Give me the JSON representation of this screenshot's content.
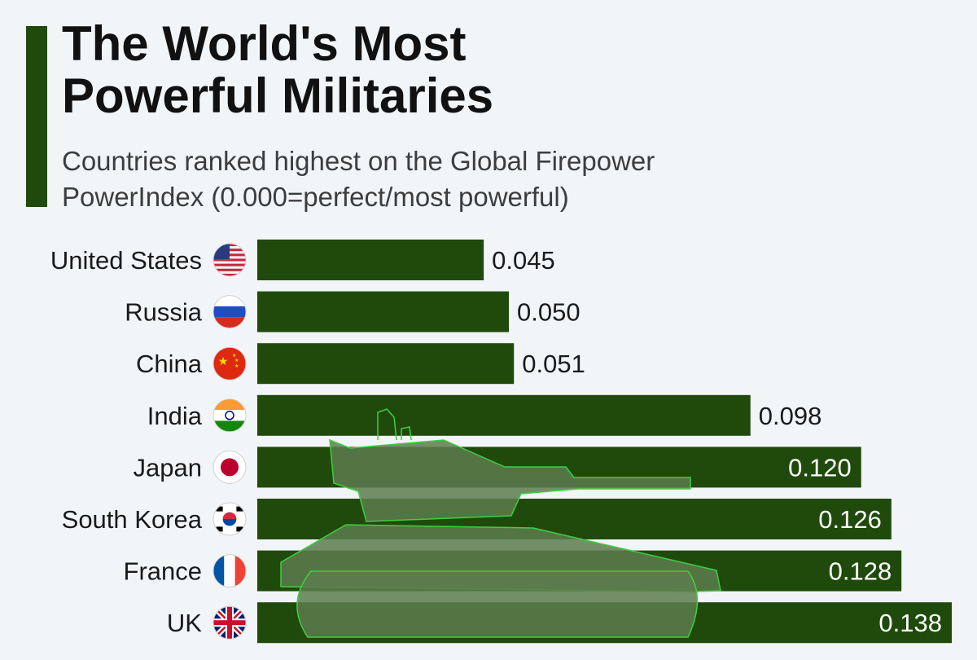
{
  "header": {
    "title_line1": "The World's Most",
    "title_line2": "Powerful Militaries",
    "subtitle_line1": "Countries ranked highest on the Global Firepower",
    "subtitle_line2": "PowerIndex (0.000=perfect/most powerful)"
  },
  "colors": {
    "bar": "#1f4a0c",
    "accent": "#1f4a0c",
    "background": "#f2f5f8",
    "tank_fill": "#5d7d4e",
    "tank_stroke": "#3fcf3f"
  },
  "chart_data": {
    "type": "bar",
    "orientation": "horizontal",
    "title": "The World's Most Powerful Militaries",
    "subtitle": "Countries ranked highest on the Global Firepower PowerIndex (0.000=perfect/most powerful)",
    "categories": [
      "United States",
      "Russia",
      "China",
      "India",
      "Japan",
      "South Korea",
      "France",
      "UK"
    ],
    "values": [
      0.045,
      0.05,
      0.051,
      0.098,
      0.12,
      0.126,
      0.128,
      0.138
    ],
    "value_labels": [
      "0.045",
      "0.050",
      "0.051",
      "0.098",
      "0.120",
      "0.126",
      "0.128",
      "0.138"
    ],
    "flags": [
      "us-flag-icon",
      "russia-flag-icon",
      "china-flag-icon",
      "india-flag-icon",
      "japan-flag-icon",
      "south-korea-flag-icon",
      "france-flag-icon",
      "uk-flag-icon"
    ],
    "xlim": [
      0,
      0.138
    ],
    "grid": false,
    "legend": "none",
    "decoration": "tank silhouette overlay"
  }
}
